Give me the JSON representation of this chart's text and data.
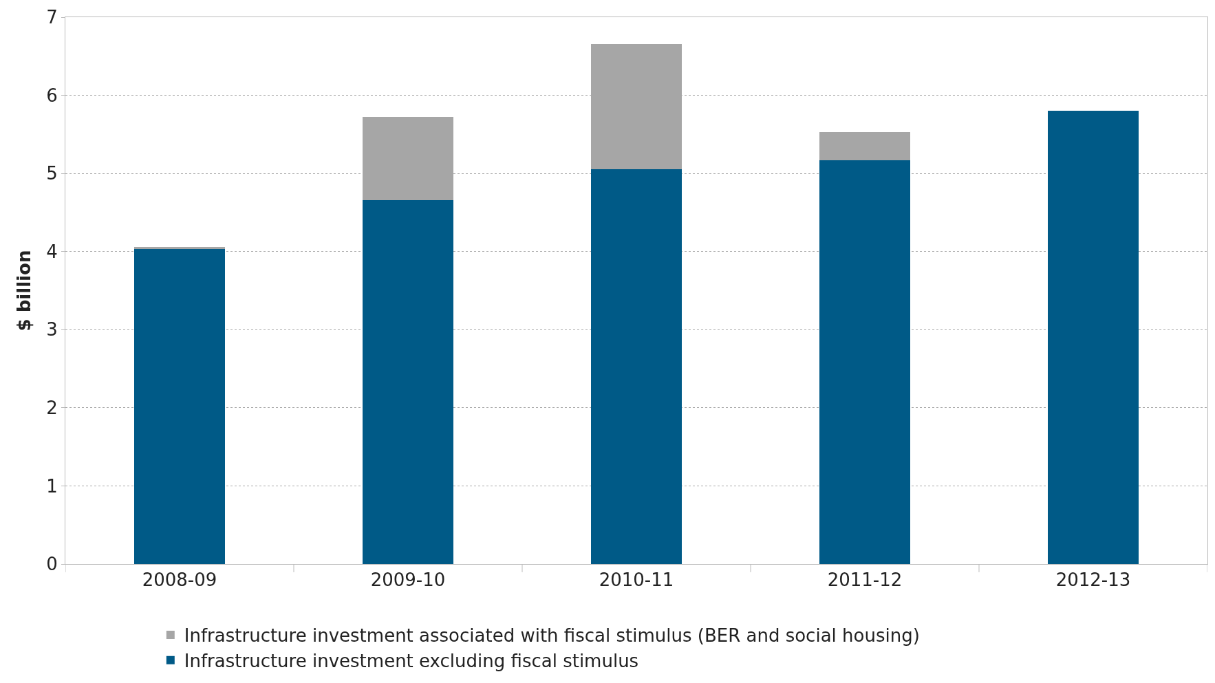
{
  "chart_data": {
    "type": "bar",
    "stacked": true,
    "ylabel": "$ billion",
    "categories": [
      "2008-09",
      "2009-10",
      "2010-11",
      "2011-12",
      "2012-13"
    ],
    "series": [
      {
        "name": "Infrastructure investment excluding fiscal stimulus",
        "color": "#005a87",
        "values": [
          4.03,
          4.66,
          5.05,
          5.17,
          5.8
        ]
      },
      {
        "name": "Infrastructure investment associated with fiscal stimulus (BER and social housing)",
        "color": "#a6a6a6",
        "values": [
          0.03,
          1.06,
          1.61,
          0.36,
          null
        ]
      }
    ],
    "ylim": [
      0,
      7
    ],
    "yticks": [
      0,
      1,
      2,
      3,
      4,
      5,
      6,
      7
    ],
    "grid": "y",
    "legend": "bottom"
  }
}
